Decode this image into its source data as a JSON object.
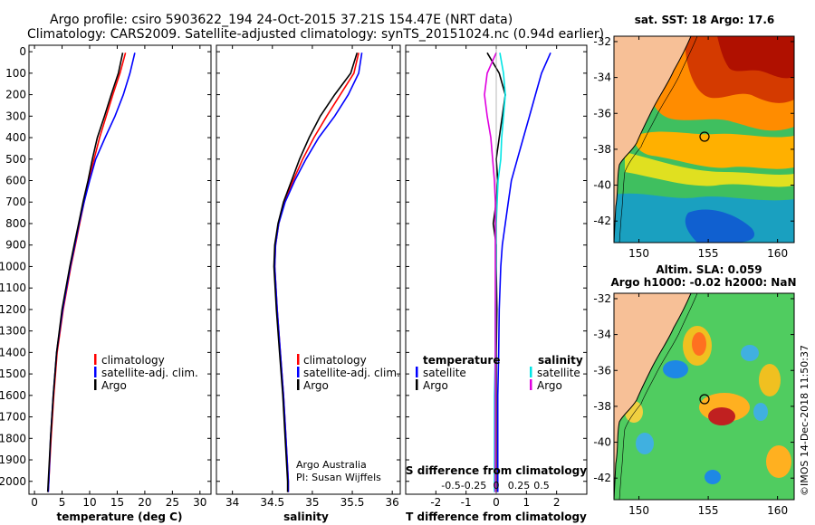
{
  "header": {
    "line1": "Argo profile: csiro 5903622_194 24-Oct-2015 37.21S 154.47E (NRT data)",
    "line2": "Climatology: CARS2009. Satellite-adjusted climatology: synTS_20151024.nc (0.94d earlier)"
  },
  "credits": {
    "org": "Argo Australia",
    "pi": "PI: Susan Wijffels",
    "side": "©IMOS 14-Dec-2018 11:50:37"
  },
  "colors": {
    "climatology": "#ff0000",
    "satellite": "#0000ff",
    "argo": "#000000",
    "salinity_satellite": "#00e5e5",
    "salinity_argo": "#e000e0",
    "land": "#f7c097"
  },
  "depth_axis": {
    "ticks": [
      0,
      100,
      200,
      300,
      400,
      500,
      600,
      700,
      800,
      900,
      1000,
      1100,
      1200,
      1300,
      1400,
      1500,
      1600,
      1700,
      1800,
      1900,
      2000
    ],
    "tick_labels": [
      "0",
      "100",
      "200",
      "300",
      "400",
      "500",
      "600",
      "700",
      "800",
      "900",
      "1000",
      "1100",
      "1200",
      "1300",
      "1400",
      "1500",
      "1600",
      "1700",
      "1800",
      "1900",
      "2000"
    ],
    "ylim": [
      2060,
      -30
    ]
  },
  "legend": {
    "climatology": "climatology",
    "satellite": "satellite-adj. clim.",
    "argo": "Argo",
    "temperature": "temperature",
    "salinity": "salinity",
    "satellite_short": "satellite",
    "argo_short": "Argo"
  },
  "chart_data": [
    {
      "type": "line",
      "name": "temperature",
      "xlabel": "temperature (deg C)",
      "ylabel": "depth",
      "xlim": [
        -1,
        32
      ],
      "xticks": [
        0,
        5,
        10,
        15,
        20,
        25,
        30
      ],
      "xtick_labels": [
        "0",
        "5",
        "10",
        "15",
        "20",
        "25",
        "30"
      ],
      "depth": [
        5,
        100,
        200,
        300,
        400,
        500,
        600,
        700,
        800,
        900,
        1000,
        1200,
        1400,
        1600,
        1800,
        2000,
        2050
      ],
      "series": [
        {
          "name": "climatology",
          "values": [
            16.5,
            15.5,
            14.2,
            13.0,
            11.8,
            10.8,
            9.9,
            9.0,
            8.2,
            7.4,
            6.6,
            5.2,
            4.1,
            3.5,
            3.0,
            2.6,
            2.5
          ]
        },
        {
          "name": "satellite-adj. clim.",
          "values": [
            18.2,
            17.3,
            16.1,
            14.6,
            12.8,
            11.1,
            10.0,
            9.0,
            8.1,
            7.3,
            6.5,
            5.1,
            4.0,
            3.4,
            2.9,
            2.6,
            2.5
          ]
        },
        {
          "name": "Argo",
          "values": [
            16.0,
            15.2,
            13.9,
            12.7,
            11.4,
            10.5,
            9.7,
            8.8,
            8.0,
            7.2,
            6.4,
            5.0,
            4.0,
            3.4,
            2.9,
            2.5,
            2.4
          ]
        }
      ]
    },
    {
      "type": "line",
      "name": "salinity",
      "xlabel": "salinity",
      "ylabel": "depth",
      "xlim": [
        33.8,
        36.1
      ],
      "xticks": [
        34,
        34.5,
        35,
        35.5,
        36
      ],
      "xtick_labels": [
        "34",
        "34.5",
        "35",
        "35.5",
        "36"
      ],
      "depth": [
        5,
        100,
        200,
        300,
        400,
        500,
        600,
        700,
        800,
        900,
        1000,
        1200,
        1400,
        1600,
        1800,
        2000,
        2050
      ],
      "series": [
        {
          "name": "climatology",
          "values": [
            35.58,
            35.52,
            35.35,
            35.18,
            35.02,
            34.88,
            34.76,
            34.65,
            34.58,
            34.54,
            34.53,
            34.56,
            34.6,
            34.64,
            34.67,
            34.7,
            34.7
          ]
        },
        {
          "name": "satellite-adj. clim.",
          "values": [
            35.62,
            35.58,
            35.45,
            35.28,
            35.08,
            34.92,
            34.78,
            34.66,
            34.58,
            34.54,
            34.53,
            34.56,
            34.6,
            34.64,
            34.67,
            34.7,
            34.7
          ]
        },
        {
          "name": "Argo",
          "values": [
            35.56,
            35.48,
            35.28,
            35.1,
            34.96,
            34.84,
            34.74,
            34.64,
            34.57,
            34.53,
            34.52,
            34.55,
            34.59,
            34.63,
            34.66,
            34.69,
            34.69
          ]
        }
      ]
    },
    {
      "type": "line",
      "name": "difference",
      "xlabel": "T difference from climatology",
      "top_label": "S difference from climatology",
      "ylabel": "depth",
      "xlim": [
        -3,
        3
      ],
      "xticks": [
        -2,
        -1,
        0,
        1,
        2
      ],
      "xtick_labels": [
        "-2",
        "-1",
        "0",
        "1",
        "2"
      ],
      "s_ticks": [
        -0.5,
        -0.25,
        0,
        0.25,
        0.5
      ],
      "s_tick_labels": [
        "-0.5",
        "-0.25",
        "0",
        "0.25",
        "0.5"
      ],
      "depth": [
        5,
        100,
        200,
        300,
        400,
        500,
        600,
        700,
        800,
        900,
        1000,
        1200,
        1400,
        1600,
        1800,
        2000,
        2050
      ],
      "series": [
        {
          "name": "temperature satellite",
          "values": [
            1.8,
            1.5,
            1.3,
            1.1,
            0.9,
            0.7,
            0.5,
            0.4,
            0.3,
            0.2,
            0.15,
            0.1,
            0.08,
            0.05,
            0.05,
            0.05,
            0.05
          ]
        },
        {
          "name": "temperature Argo",
          "values": [
            -0.3,
            0.1,
            0.3,
            0.2,
            0.1,
            0.0,
            0.05,
            0.0,
            -0.1,
            0.0,
            0.0,
            0.02,
            0.0,
            0.0,
            0.0,
            0.0,
            0.0
          ]
        },
        {
          "name": "salinity satellite",
          "values": [
            0.04,
            0.08,
            0.1,
            0.08,
            0.06,
            0.05,
            0.02,
            0.01,
            0.0,
            0.0,
            0.0,
            -0.01,
            -0.01,
            -0.02,
            -0.02,
            -0.02,
            -0.02
          ]
        },
        {
          "name": "salinity Argo",
          "values": [
            0.0,
            -0.1,
            -0.13,
            -0.1,
            -0.06,
            -0.04,
            -0.02,
            -0.01,
            -0.01,
            -0.01,
            -0.01,
            -0.01,
            -0.01,
            -0.01,
            -0.01,
            -0.01,
            -0.01
          ]
        }
      ]
    }
  ],
  "maps": {
    "sst": {
      "title": "sat. SST: 18 Argo: 17.6",
      "lat_labels": [
        "-32",
        "-34",
        "-36",
        "-38",
        "-40",
        "-42"
      ],
      "lon_labels": [
        "150",
        "155",
        "160"
      ]
    },
    "sla": {
      "title1": "Altim. SLA: 0.059",
      "title2": "Argo h1000: -0.02 h2000: NaN",
      "lat_labels": [
        "-32",
        "-34",
        "-36",
        "-38",
        "-40",
        "-42"
      ],
      "lon_labels": [
        "150",
        "155",
        "160"
      ]
    }
  }
}
